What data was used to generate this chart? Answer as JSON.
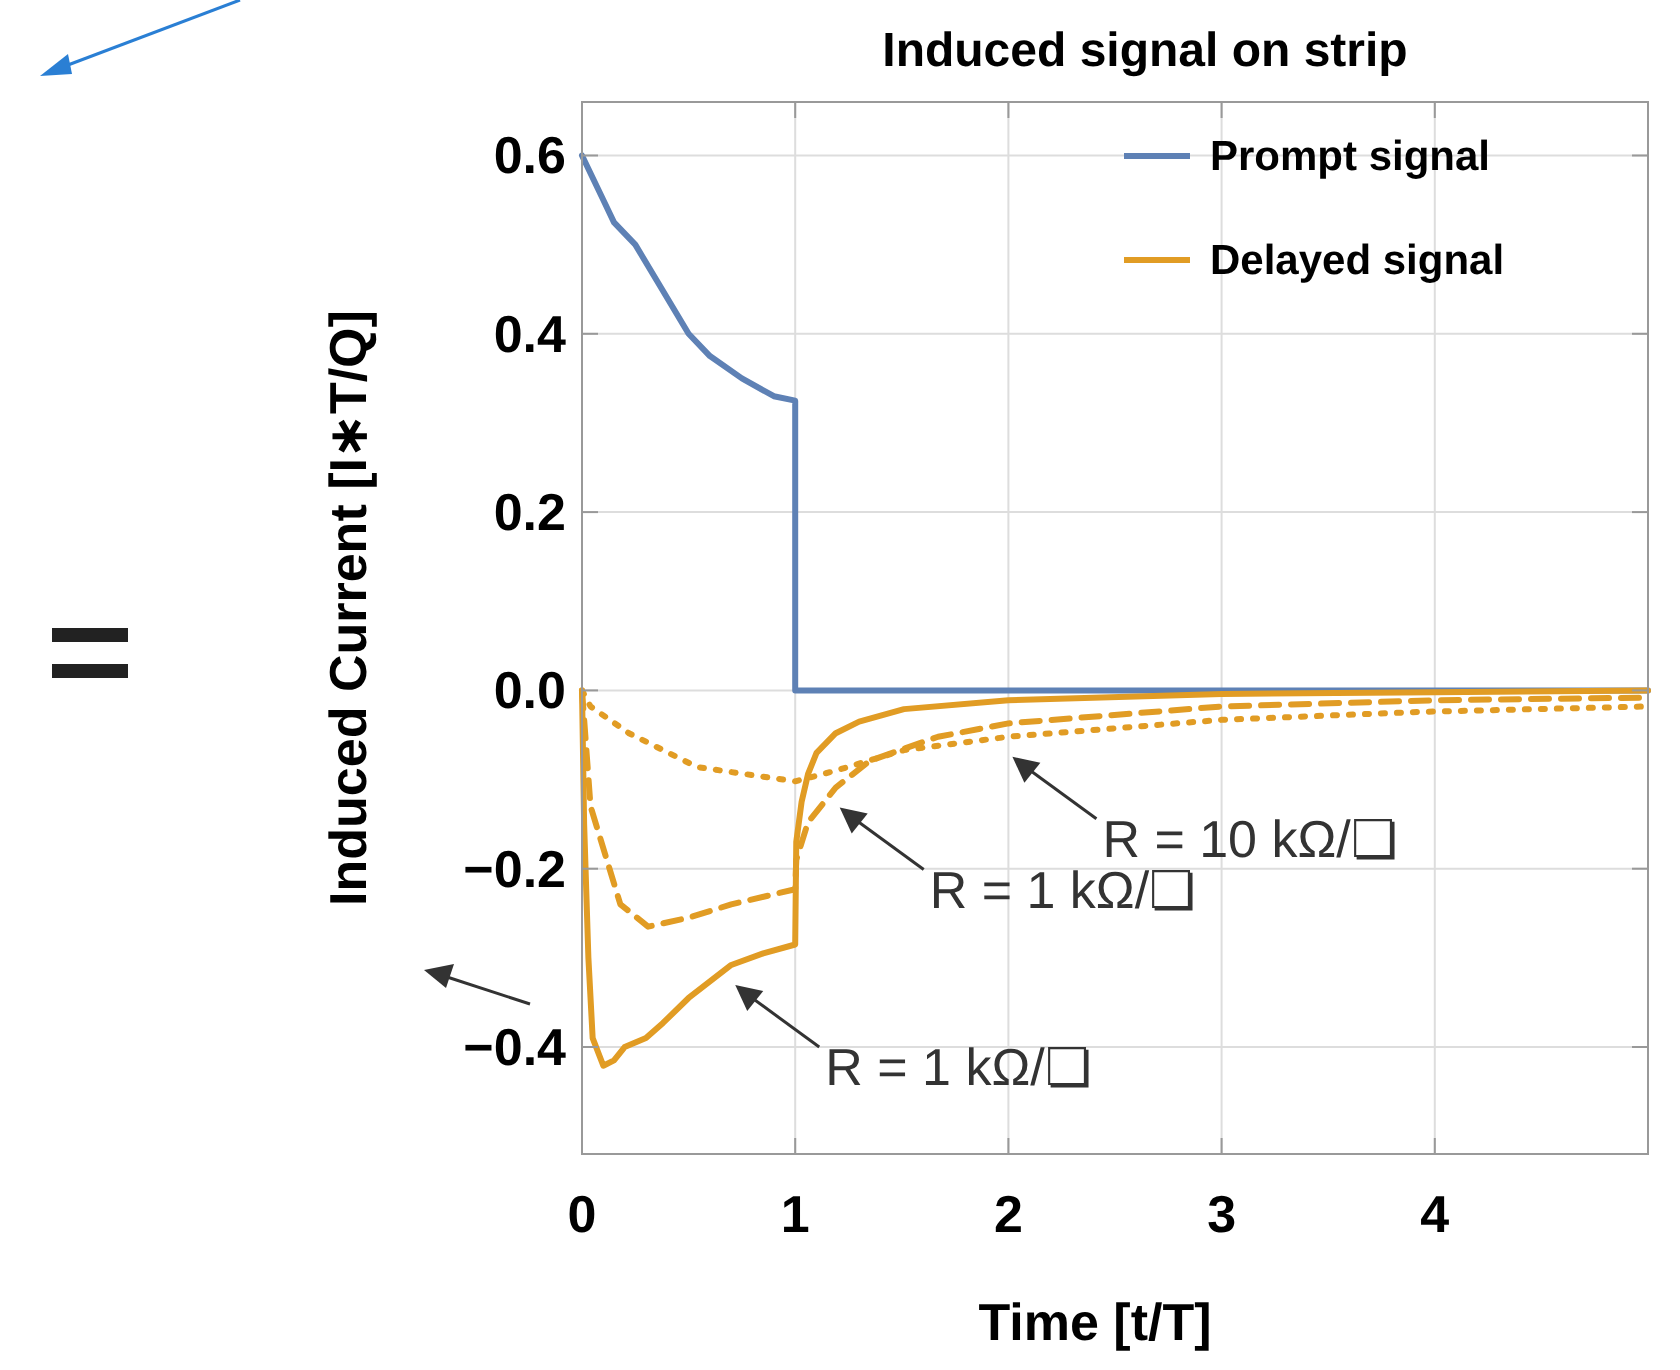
{
  "chart_data": {
    "type": "line",
    "title": "Induced signal on strip",
    "xlabel": "Time [t/T]",
    "ylabel": "Induced Current [I∗T/Q]",
    "xlim": [
      0,
      5
    ],
    "ylim": [
      -0.52,
      0.66
    ],
    "xticks": [
      0,
      1,
      2,
      3,
      4
    ],
    "yticks": [
      {
        "value": -0.4,
        "label": "−0.4"
      },
      {
        "value": -0.2,
        "label": "−0.2"
      },
      {
        "value": 0,
        "label": "0.0"
      },
      {
        "value": 0.2,
        "label": "0.2"
      },
      {
        "value": 0.4,
        "label": "0.4"
      },
      {
        "value": 0.6,
        "label": "0.6"
      }
    ],
    "grid": true,
    "legend": "top right",
    "marker": "none",
    "series": [
      {
        "name": "Prompt signal",
        "color": "#5e81b5",
        "line_style": "solid",
        "x": [
          0,
          0.05,
          0.1,
          0.15,
          0.25,
          0.35,
          0.5,
          0.6,
          0.75,
          0.9,
          1,
          1,
          5
        ],
        "values": [
          0.6,
          0.575,
          0.55,
          0.525,
          0.5,
          0.46,
          0.4,
          0.375,
          0.35,
          0.33,
          0.325,
          0,
          0
        ]
      },
      {
        "name": "Delayed signal",
        "color": "#e19c24",
        "line_style": "solid",
        "x": [
          0,
          0.01,
          0.03,
          0.05,
          0.1,
          0.15,
          0.2,
          0.3,
          0.38,
          0.5,
          0.7,
          0.85,
          1,
          1.005,
          1.03,
          1.06,
          1.1,
          1.19,
          1.3,
          1.51,
          2,
          3,
          4,
          5
        ],
        "values": [
          0,
          -0.15,
          -0.3,
          -0.39,
          -0.421,
          -0.415,
          -0.4,
          -0.39,
          -0.373,
          -0.345,
          -0.308,
          -0.295,
          -0.285,
          -0.17,
          -0.125,
          -0.094,
          -0.07,
          -0.048,
          -0.035,
          -0.021,
          -0.011,
          -0.004,
          -0.002,
          0
        ]
      },
      {
        "color": "#e19c24",
        "line_style": "dashed",
        "x": [
          0,
          0.04,
          0.18,
          0.31,
          0.5,
          0.7,
          1,
          1.005,
          1.06,
          1.19,
          1.35,
          1.67,
          2,
          3,
          4,
          5
        ],
        "values": [
          0,
          -0.13,
          -0.24,
          -0.265,
          -0.255,
          -0.24,
          -0.223,
          -0.19,
          -0.148,
          -0.109,
          -0.079,
          -0.052,
          -0.037,
          -0.018,
          -0.011,
          -0.008
        ]
      },
      {
        "color": "#e19c24",
        "line_style": "dotted",
        "x": [
          0,
          0.04,
          0.22,
          0.54,
          1,
          1.19,
          1.51,
          2,
          3,
          3.94,
          5
        ],
        "values": [
          0,
          -0.018,
          -0.048,
          -0.086,
          -0.102,
          -0.09,
          -0.067,
          -0.052,
          -0.033,
          -0.024,
          -0.018
        ]
      }
    ],
    "annotations": [
      {
        "text": "R = 10 kΩ/❏",
        "x": 2,
        "y": -0.052
      },
      {
        "text": "R = 1 kΩ/❏",
        "x": 1.19,
        "y": -0.109
      },
      {
        "text": "R = 1 kΩ/❏",
        "x": 0.7,
        "y": -0.308
      }
    ]
  }
}
